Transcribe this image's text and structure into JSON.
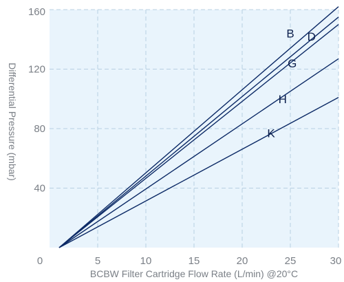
{
  "chart_data": {
    "type": "line",
    "title": "",
    "xlabel": "BCBW Filter Cartridge Flow Rate (L/min) @20°C",
    "ylabel": "Differential Pressure (mbar)",
    "xlim": [
      0,
      30
    ],
    "ylim": [
      0,
      160
    ],
    "x_ticks": [
      0,
      5,
      10,
      15,
      20,
      25,
      30
    ],
    "y_ticks": [
      40,
      80,
      120,
      160
    ],
    "grid": true,
    "legend": "none",
    "colors": {
      "plot_background": "#e9f4fc",
      "grid": "#b8cfe2",
      "line": "#0c2a66",
      "label_text": "#0c1f4d",
      "tick_text": "#7a7f86"
    },
    "series": [
      {
        "name": "B",
        "points": [
          [
            1,
            0
          ],
          [
            30,
            162
          ]
        ]
      },
      {
        "name": "D",
        "points": [
          [
            1,
            0
          ],
          [
            30,
            155
          ]
        ]
      },
      {
        "name": "G",
        "points": [
          [
            1,
            0
          ],
          [
            30,
            150
          ]
        ]
      },
      {
        "name": "H",
        "points": [
          [
            1,
            0
          ],
          [
            30,
            127
          ]
        ]
      },
      {
        "name": "K",
        "points": [
          [
            1,
            0
          ],
          [
            30,
            101
          ]
        ]
      }
    ],
    "annotations": [
      {
        "text": "B",
        "x": 25,
        "y": 144
      },
      {
        "text": "D",
        "x": 27.2,
        "y": 142
      },
      {
        "text": "G",
        "x": 25.2,
        "y": 124
      },
      {
        "text": "H",
        "x": 24.2,
        "y": 100
      },
      {
        "text": "K",
        "x": 23,
        "y": 77
      }
    ]
  }
}
